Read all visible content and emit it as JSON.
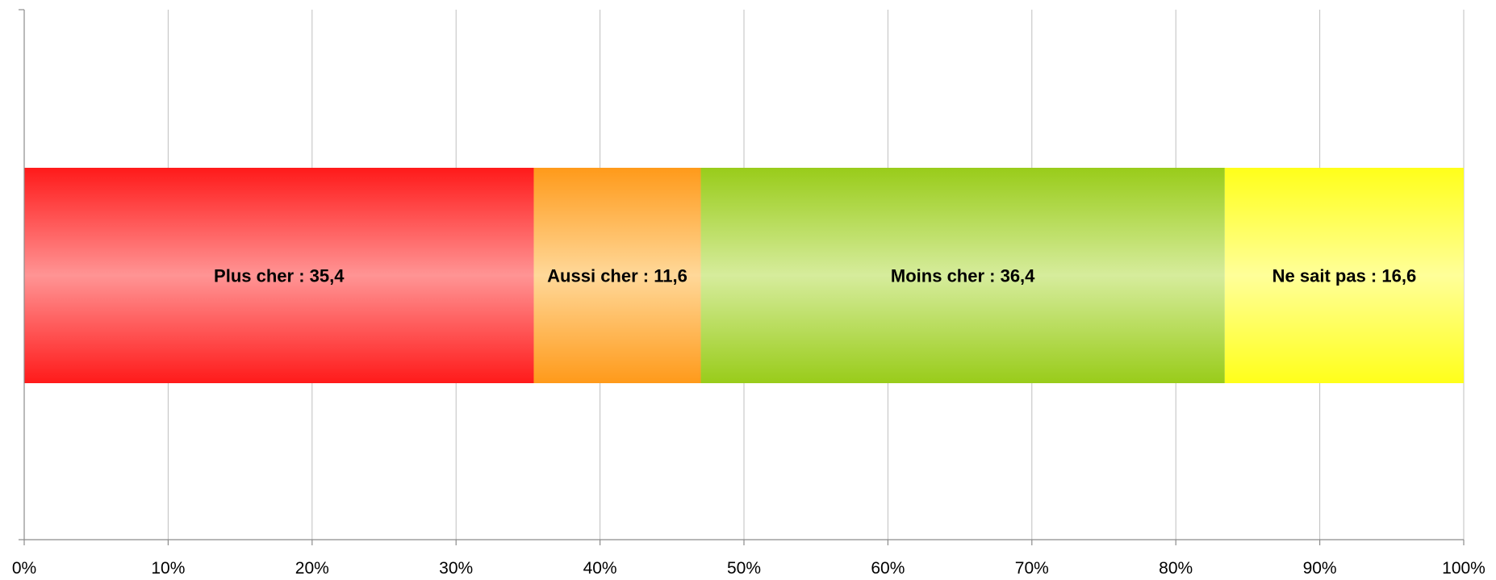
{
  "chart_data": {
    "type": "bar",
    "orientation": "horizontal",
    "stacked": "percent",
    "categories": [
      ""
    ],
    "series": [
      {
        "name": "Plus cher",
        "values": [
          35.4
        ],
        "label": "Plus cher : 35,4",
        "color": "#ff1a1a",
        "light": "#ff9494"
      },
      {
        "name": "Aussi cher",
        "values": [
          11.6
        ],
        "label": "Aussi cher : 11,6",
        "color": "#ff9a1a",
        "light": "#ffd899"
      },
      {
        "name": "Moins cher",
        "values": [
          36.4
        ],
        "label": "Moins cher : 36,4",
        "color": "#99cc1a",
        "light": "#d6ec9c"
      },
      {
        "name": "Ne sait pas",
        "values": [
          16.6
        ],
        "label": "Ne sait pas : 16,6",
        "color": "#ffff1a",
        "light": "#ffff99"
      }
    ],
    "x_ticks": [
      "0%",
      "10%",
      "20%",
      "30%",
      "40%",
      "50%",
      "60%",
      "70%",
      "80%",
      "90%",
      "100%"
    ],
    "xlim": [
      0,
      100
    ],
    "grid": true,
    "legend": "none",
    "title": "",
    "xlabel": "",
    "ylabel": ""
  }
}
